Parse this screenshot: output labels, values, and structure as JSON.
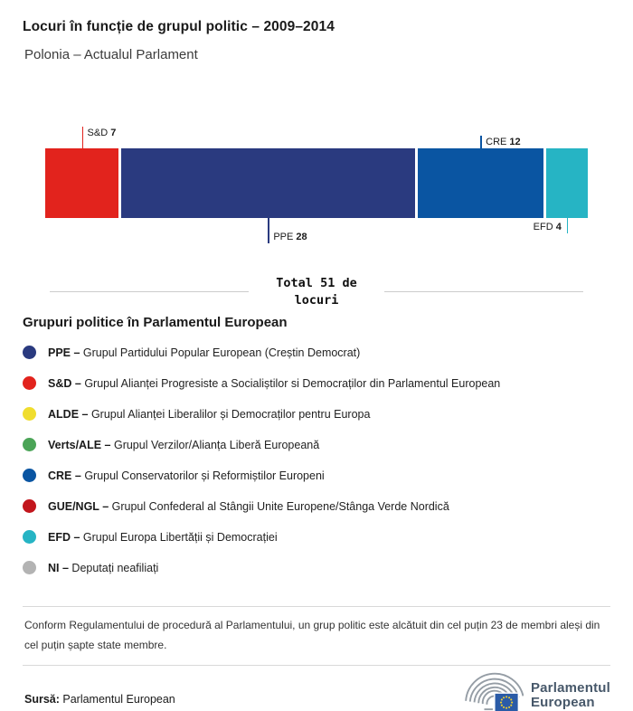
{
  "header": {
    "title": "Locuri în funcție de grupul politic – 2009–2014",
    "subtitle": "Polonia – Actualul Parlament"
  },
  "chart_data": {
    "type": "bar",
    "orientation": "horizontal-stacked",
    "title": "Locuri în funcție de grupul politic – 2009–2014",
    "subtitle": "Polonia – Actualul Parlament",
    "total": 51,
    "total_label": "Total 51 de\nlocuri",
    "categories": [
      "S&D",
      "PPE",
      "CRE",
      "EFD"
    ],
    "values": [
      7,
      28,
      12,
      4
    ],
    "segments": [
      {
        "group": "S&D",
        "seats": 7,
        "color": "#e2231d",
        "callout": "top",
        "label_side": "right",
        "line_len": 24
      },
      {
        "group": "PPE",
        "seats": 28,
        "color": "#2a3a7f",
        "callout": "bottom",
        "label_side": "right",
        "line_len": 28
      },
      {
        "group": "CRE",
        "seats": 12,
        "color": "#0a55a2",
        "callout": "top",
        "label_side": "right",
        "line_len": 14
      },
      {
        "group": "EFD",
        "seats": 4,
        "color": "#26b4c4",
        "callout": "bottom",
        "label_side": "left",
        "line_len": 17
      }
    ]
  },
  "legend": {
    "heading": "Grupuri politice în Parlamentul European",
    "items": [
      {
        "abbr": "PPE –",
        "name": "Grupul Partidului Popular European (Creștin Democrat)",
        "color": "#2a3a7f"
      },
      {
        "abbr": "S&D –",
        "name": "Grupul Alianței Progresiste a Socialiștilor si Democraților din Parlamentul European",
        "color": "#e2231d"
      },
      {
        "abbr": "ALDE –",
        "name": "Grupul Alianței Liberalilor și Democraților pentru Europa",
        "color": "#f0dd2e"
      },
      {
        "abbr": "Verts/ALE –",
        "name": "Grupul Verzilor/Alianța Liberă Europeană",
        "color": "#4ba457"
      },
      {
        "abbr": "CRE –",
        "name": "Grupul Conservatorilor și Reformiștilor Europeni",
        "color": "#0a55a2"
      },
      {
        "abbr": "GUE/NGL –",
        "name": "Grupul Confederal al Stângii Unite Europene/Stânga Verde Nordică",
        "color": "#c2161d"
      },
      {
        "abbr": "EFD –",
        "name": "Grupul Europa Libertății și Democrației",
        "color": "#26b4c4"
      },
      {
        "abbr": "NI –",
        "name": "Deputați neafiliați",
        "color": "#b3b3b3"
      }
    ]
  },
  "footnote": "Conform Regulamentului de procedură al Parlamentului, un grup politic este alcătuit din cel puțin 23 de membri aleși din cel puțin șapte state membre.",
  "source": {
    "label": "Sursă:",
    "value": " Parlamentul European"
  },
  "logo": {
    "line1": "Parlamentul",
    "line2": "European"
  }
}
